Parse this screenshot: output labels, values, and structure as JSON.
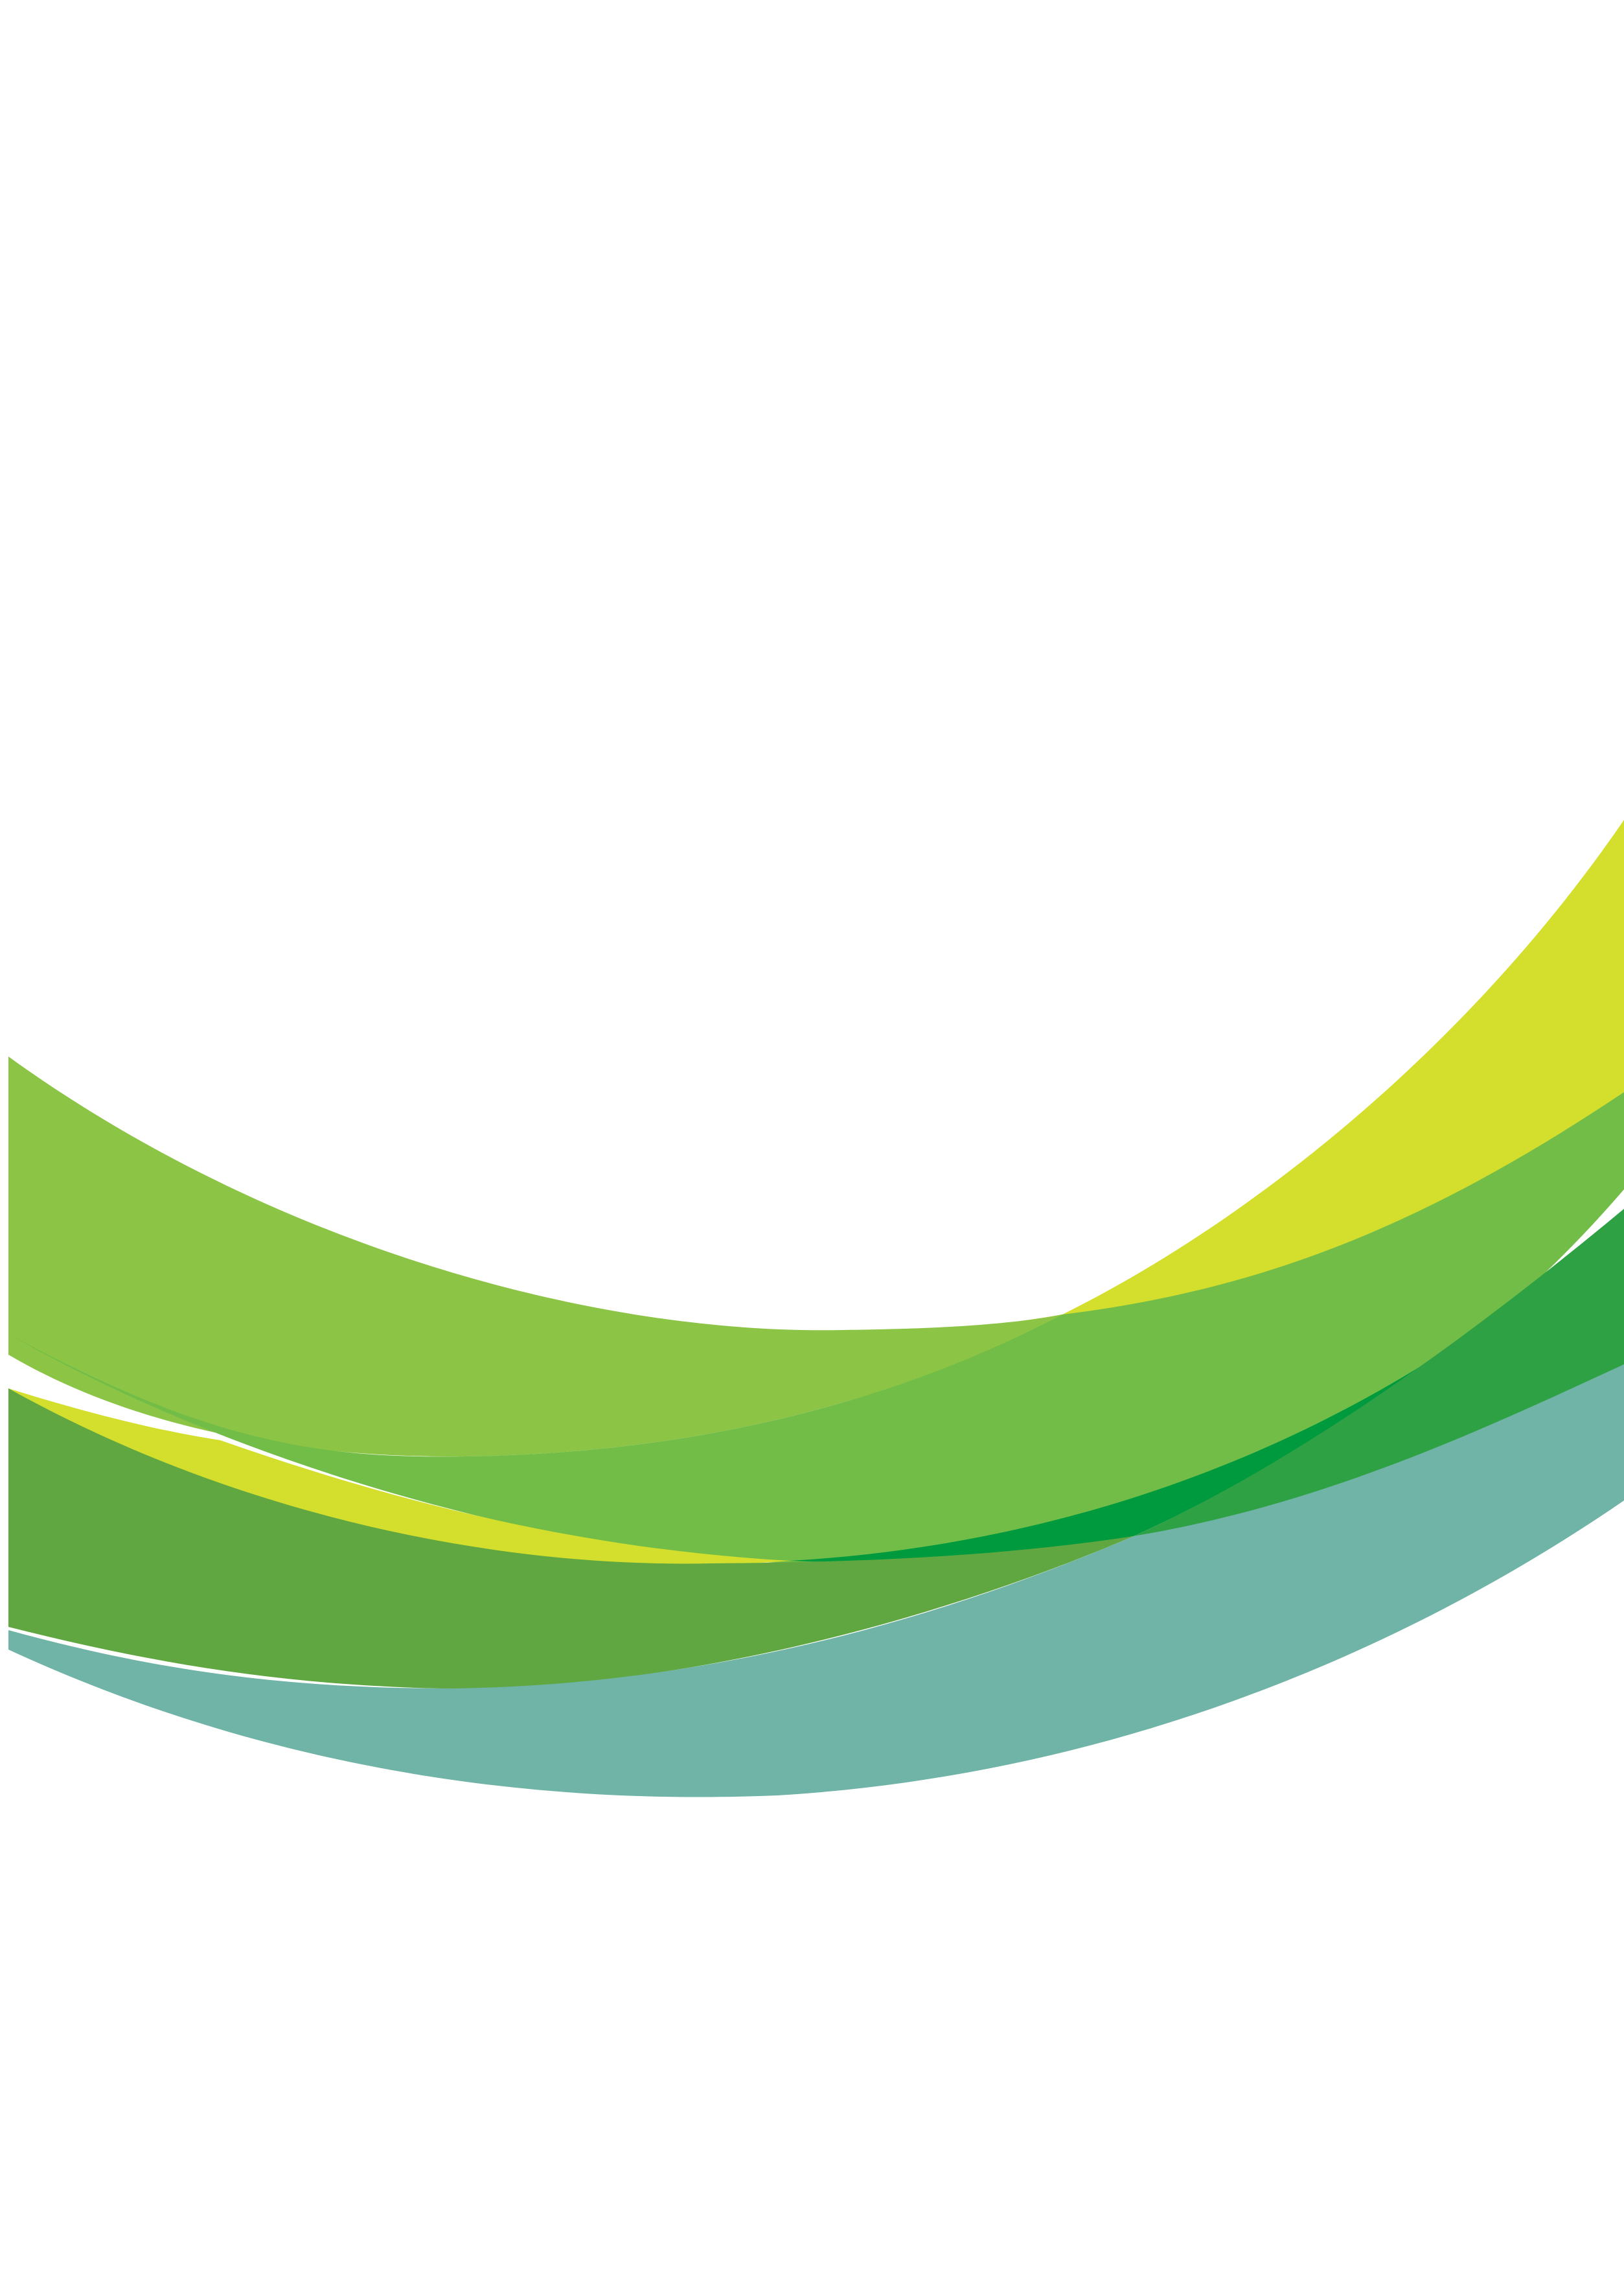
{
  "page": {
    "background": "#ffffff"
  },
  "waves": {
    "colors": {
      "lime_yellow": "#d4df2d",
      "light_green": "#8cc446",
      "mid_green": "#72bd47",
      "deep_green": "#009a3e",
      "forest_green": "#2fa145",
      "olive_green": "#61a741",
      "teal": "#6fb4a6"
    }
  }
}
